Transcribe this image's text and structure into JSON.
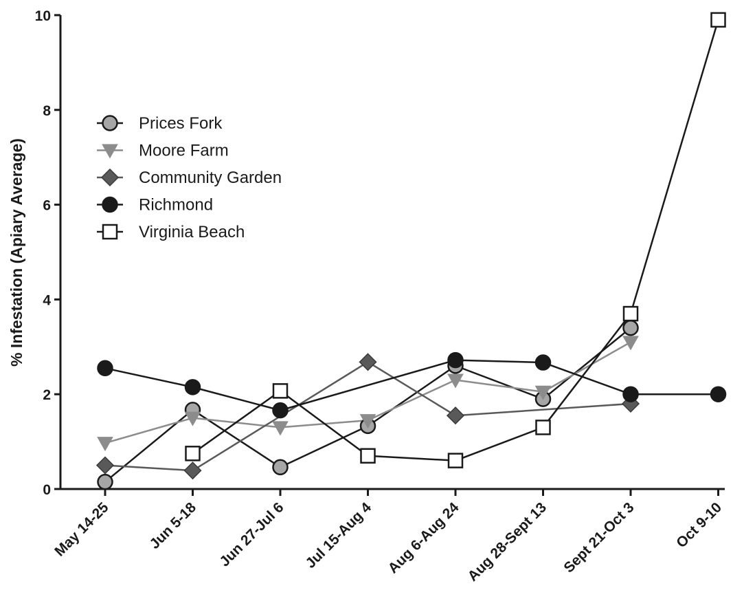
{
  "chart_data": {
    "type": "line",
    "title": "",
    "xlabel": "",
    "ylabel": "% Infestation (Apiary Average)",
    "ylim": [
      0,
      10
    ],
    "yticks": [
      "0",
      "2",
      "4",
      "6",
      "8",
      "10"
    ],
    "categories": [
      "May 14-25",
      "Jun 5-18",
      "Jun 27-Jul 6",
      "Jul 15-Aug 4",
      "Aug 6-Aug 24",
      "Aug 28-Sept 13",
      "Sept 21-Oct 3",
      "Oct 9-10"
    ],
    "grid": false,
    "legend_position": "upper-left",
    "series": [
      {
        "name": "Prices Fork",
        "marker": "circle",
        "marker_fill": "#a6a6a6",
        "line_color": "#1a1a1a",
        "values": [
          0.15,
          1.67,
          0.46,
          1.33,
          2.6,
          1.9,
          3.4,
          null
        ]
      },
      {
        "name": "Moore Farm",
        "marker": "triangle-down",
        "marker_fill": "#8c8c8c",
        "line_color": "#8c8c8c",
        "values": [
          0.97,
          1.5,
          1.3,
          1.45,
          2.3,
          2.05,
          3.1,
          null
        ]
      },
      {
        "name": "Community Garden",
        "marker": "diamond",
        "marker_fill": "#595959",
        "line_color": "#595959",
        "values": [
          0.5,
          0.39,
          null,
          2.68,
          1.55,
          null,
          1.8,
          null
        ]
      },
      {
        "name": "Richmond",
        "marker": "circle",
        "marker_fill": "#1a1a1a",
        "line_color": "#1a1a1a",
        "values": [
          2.55,
          2.15,
          1.66,
          null,
          2.72,
          2.67,
          2.0,
          2.0
        ]
      },
      {
        "name": "Virginia Beach",
        "marker": "square-open",
        "marker_fill": "#ffffff",
        "line_color": "#1a1a1a",
        "values": [
          null,
          0.75,
          2.07,
          0.7,
          0.6,
          1.3,
          3.7,
          9.9
        ]
      }
    ]
  }
}
